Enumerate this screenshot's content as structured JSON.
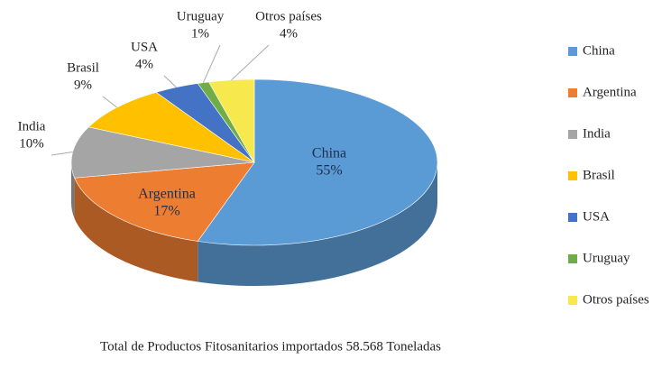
{
  "chart_data": {
    "type": "pie",
    "caption": "Total de Productos Fitosanitarios importados 58.568 Toneladas",
    "categories": [
      "China",
      "Argentina",
      "India",
      "Brasil",
      "USA",
      "Uruguay",
      "Otros países"
    ],
    "values": [
      55,
      17,
      10,
      9,
      4,
      1,
      4
    ],
    "value_labels": [
      "55%",
      "17%",
      "10%",
      "9%",
      "4%",
      "1%",
      "4%"
    ],
    "colors": [
      "#5b9bd5",
      "#ed7d31",
      "#a5a5a5",
      "#ffc000",
      "#4472c4",
      "#70ad47",
      "#f7e84e"
    ],
    "legend": "right"
  }
}
